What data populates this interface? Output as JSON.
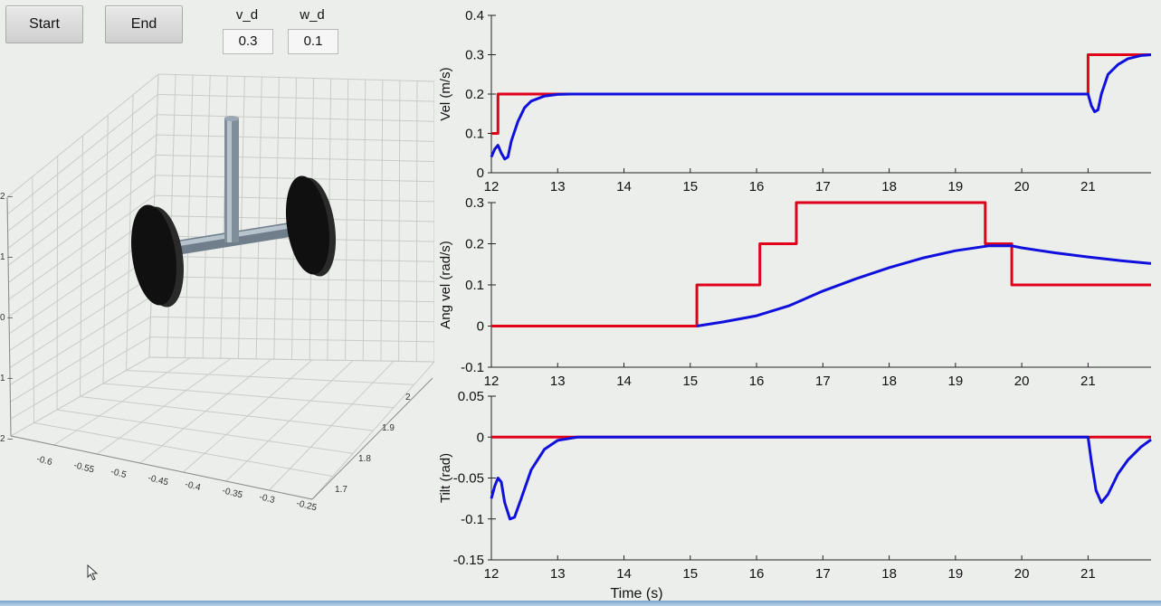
{
  "controls": {
    "start_label": "Start",
    "end_label": "End",
    "v_d": {
      "label": "v_d",
      "value": "0.3"
    },
    "w_d": {
      "label": "w_d",
      "value": "0.1"
    }
  },
  "scene3d": {
    "y_ticks": [
      "2",
      "1",
      "0",
      "1",
      "2"
    ],
    "x_ticks": [
      "-0.6",
      "-0.55",
      "-0.5",
      "-0.45",
      "-0.4",
      "-0.35",
      "-0.3",
      "-0.25"
    ],
    "z_ticks": [
      "2",
      "1.9",
      "1.8",
      "1.7"
    ]
  },
  "colors": {
    "reference": "#e1001a",
    "actual": "#1010dd",
    "axis": "#222222",
    "grid_3d": "#c9cbc9",
    "wheel": "#111111",
    "body": "#8c9aa6"
  },
  "chart_data": [
    {
      "type": "line",
      "ylabel": "Vel (m/s)",
      "xlabel": "",
      "xlim": [
        12,
        21.95
      ],
      "ylim": [
        0,
        0.4
      ],
      "x_ticks": [
        12,
        13,
        14,
        15,
        16,
        17,
        18,
        19,
        20,
        21
      ],
      "y_ticks": [
        "0",
        "0.1",
        "0.2",
        "0.3",
        "0.4"
      ],
      "series": [
        {
          "color": "#e1001a",
          "points": [
            [
              12,
              0.1
            ],
            [
              12.1,
              0.1
            ],
            [
              12.1,
              0.2
            ],
            [
              21,
              0.2
            ],
            [
              21,
              0.3
            ],
            [
              21.95,
              0.3
            ]
          ]
        },
        {
          "color": "#1010dd",
          "points": [
            [
              12,
              0.04
            ],
            [
              12.05,
              0.06
            ],
            [
              12.1,
              0.07
            ],
            [
              12.15,
              0.05
            ],
            [
              12.2,
              0.035
            ],
            [
              12.25,
              0.04
            ],
            [
              12.3,
              0.08
            ],
            [
              12.4,
              0.13
            ],
            [
              12.5,
              0.165
            ],
            [
              12.6,
              0.182
            ],
            [
              12.8,
              0.195
            ],
            [
              13,
              0.199
            ],
            [
              13.2,
              0.2
            ],
            [
              21,
              0.2
            ],
            [
              21.05,
              0.17
            ],
            [
              21.1,
              0.155
            ],
            [
              21.15,
              0.16
            ],
            [
              21.2,
              0.2
            ],
            [
              21.3,
              0.25
            ],
            [
              21.45,
              0.275
            ],
            [
              21.6,
              0.29
            ],
            [
              21.8,
              0.298
            ],
            [
              21.95,
              0.3
            ]
          ]
        }
      ]
    },
    {
      "type": "line",
      "ylabel": "Ang vel (rad/s)",
      "xlabel": "",
      "xlim": [
        12,
        21.95
      ],
      "ylim": [
        -0.1,
        0.3
      ],
      "x_ticks": [
        12,
        13,
        14,
        15,
        16,
        17,
        18,
        19,
        20,
        21
      ],
      "y_ticks": [
        "-0.1",
        "0",
        "0.1",
        "0.2",
        "0.3"
      ],
      "series": [
        {
          "color": "#e1001a",
          "points": [
            [
              12,
              0
            ],
            [
              15.1,
              0
            ],
            [
              15.1,
              0.1
            ],
            [
              16.05,
              0.1
            ],
            [
              16.05,
              0.2
            ],
            [
              16.6,
              0.2
            ],
            [
              16.6,
              0.3
            ],
            [
              19.45,
              0.3
            ],
            [
              19.45,
              0.2
            ],
            [
              19.85,
              0.2
            ],
            [
              19.85,
              0.1
            ],
            [
              21.95,
              0.1
            ]
          ]
        },
        {
          "color": "#1010dd",
          "points": [
            [
              15.1,
              0
            ],
            [
              15.5,
              0.01
            ],
            [
              16,
              0.025
            ],
            [
              16.5,
              0.05
            ],
            [
              17,
              0.085
            ],
            [
              17.5,
              0.115
            ],
            [
              18,
              0.142
            ],
            [
              18.5,
              0.165
            ],
            [
              19,
              0.183
            ],
            [
              19.5,
              0.195
            ],
            [
              19.85,
              0.195
            ],
            [
              20,
              0.19
            ],
            [
              20.5,
              0.178
            ],
            [
              21,
              0.168
            ],
            [
              21.5,
              0.159
            ],
            [
              21.95,
              0.152
            ]
          ]
        }
      ]
    },
    {
      "type": "line",
      "ylabel": "Tilt (rad)",
      "xlabel": "Time (s)",
      "xlim": [
        12,
        21.95
      ],
      "ylim": [
        -0.15,
        0.05
      ],
      "x_ticks": [
        12,
        13,
        14,
        15,
        16,
        17,
        18,
        19,
        20,
        21
      ],
      "y_ticks": [
        "-0.15",
        "-0.1",
        "-0.05",
        "0",
        "0.05"
      ],
      "series": [
        {
          "color": "#e1001a",
          "points": [
            [
              12,
              0
            ],
            [
              21.95,
              0
            ]
          ]
        },
        {
          "color": "#1010dd",
          "points": [
            [
              12,
              -0.075
            ],
            [
              12.05,
              -0.06
            ],
            [
              12.1,
              -0.05
            ],
            [
              12.15,
              -0.055
            ],
            [
              12.2,
              -0.08
            ],
            [
              12.28,
              -0.1
            ],
            [
              12.35,
              -0.098
            ],
            [
              12.45,
              -0.075
            ],
            [
              12.6,
              -0.04
            ],
            [
              12.8,
              -0.015
            ],
            [
              13,
              -0.004
            ],
            [
              13.3,
              0
            ],
            [
              21,
              0
            ],
            [
              21.05,
              -0.03
            ],
            [
              21.12,
              -0.065
            ],
            [
              21.2,
              -0.08
            ],
            [
              21.3,
              -0.07
            ],
            [
              21.45,
              -0.045
            ],
            [
              21.6,
              -0.028
            ],
            [
              21.8,
              -0.012
            ],
            [
              21.95,
              -0.003
            ]
          ]
        }
      ]
    }
  ]
}
